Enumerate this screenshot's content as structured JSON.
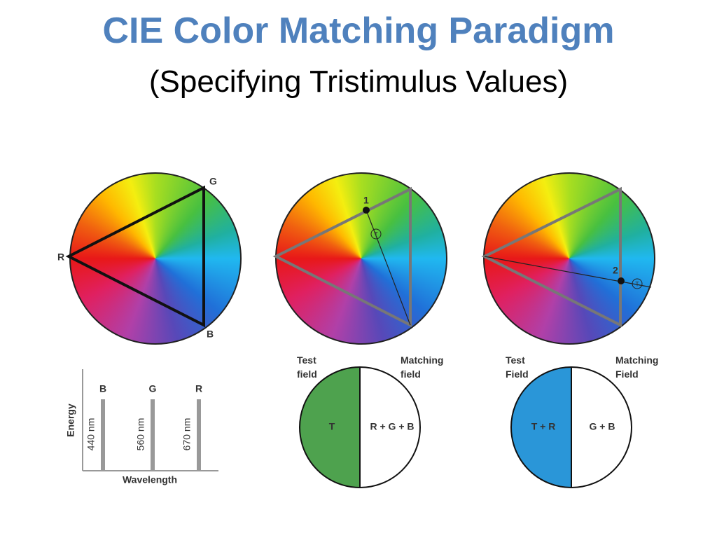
{
  "header": {
    "title": "CIE Color Matching Paradigm",
    "subtitle": "(Specifying Tristimulus Values)"
  },
  "wheels": [
    {
      "labels": [
        "G",
        "R",
        "B"
      ]
    },
    {
      "labels": [
        "1",
        "T"
      ]
    },
    {
      "labels": [
        "2",
        "T"
      ]
    }
  ],
  "spectrum": {
    "primaries": [
      "B",
      "G",
      "R"
    ],
    "wavelengths": [
      "440 nm",
      "560 nm",
      "670 nm"
    ],
    "y_label": "Energy",
    "x_label": "Wavelength"
  },
  "fields": [
    {
      "test_label": "Test\nfield",
      "matching_label": "Matching\nfield",
      "test_text": "T",
      "matching_text": "R + G + B"
    },
    {
      "test_label": "Test\nField",
      "matching_label": "Matching\nField",
      "test_text": "T + R",
      "matching_text": "G + B"
    }
  ]
}
